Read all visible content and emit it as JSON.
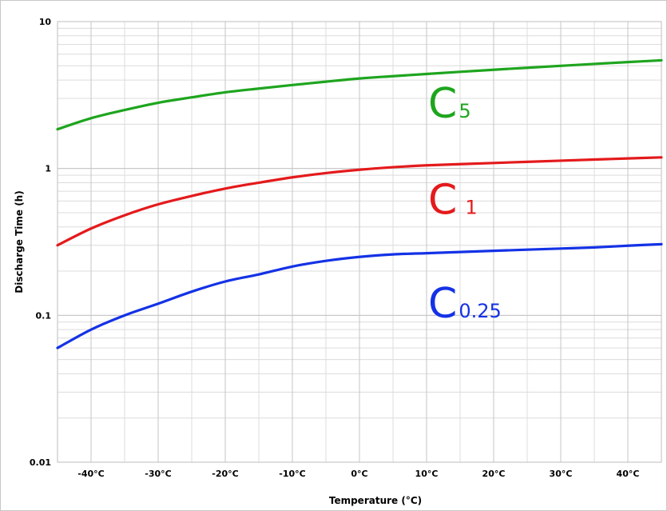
{
  "chart_data": {
    "type": "line",
    "title": "",
    "xlabel": "Temperature (°C)",
    "ylabel": "Discharge Time (h)",
    "x_ticks": [
      "-40°C",
      "-30°C",
      "-20°C",
      "-10°C",
      "0°C",
      "10°C",
      "20°C",
      "30°C",
      "40°C"
    ],
    "y_ticks": [
      "10",
      "1",
      "0.1",
      "0.01"
    ],
    "xlim": [
      -45,
      45
    ],
    "ylim": [
      0.01,
      10
    ],
    "y_scale": "log",
    "grid": true,
    "series": [
      {
        "name": "C5",
        "label_main": "C",
        "label_sub": "5",
        "color": "#1ea51e",
        "x": [
          -45,
          -40,
          -35,
          -30,
          -25,
          -20,
          -15,
          -10,
          -5,
          0,
          5,
          10,
          15,
          20,
          25,
          30,
          35,
          40,
          45
        ],
        "y": [
          1.85,
          2.2,
          2.5,
          2.8,
          3.05,
          3.3,
          3.5,
          3.7,
          3.9,
          4.1,
          4.25,
          4.4,
          4.55,
          4.7,
          4.85,
          5.0,
          5.15,
          5.3,
          5.45
        ]
      },
      {
        "name": "C1",
        "label_main": "C",
        "label_sub": "1",
        "color": "#e41a1c",
        "x": [
          -45,
          -40,
          -35,
          -30,
          -25,
          -20,
          -15,
          -10,
          -5,
          0,
          5,
          10,
          15,
          20,
          25,
          30,
          35,
          40,
          45
        ],
        "y": [
          0.3,
          0.39,
          0.48,
          0.57,
          0.65,
          0.73,
          0.8,
          0.87,
          0.93,
          0.98,
          1.02,
          1.05,
          1.07,
          1.09,
          1.11,
          1.13,
          1.15,
          1.17,
          1.19
        ]
      },
      {
        "name": "C0.25",
        "label_main": "C",
        "label_sub": "0.25",
        "color": "#1432e6",
        "x": [
          -45,
          -40,
          -35,
          -30,
          -25,
          -20,
          -15,
          -10,
          -5,
          0,
          5,
          10,
          15,
          20,
          25,
          30,
          35,
          40,
          45
        ],
        "y": [
          0.06,
          0.08,
          0.1,
          0.12,
          0.145,
          0.17,
          0.19,
          0.215,
          0.235,
          0.25,
          0.26,
          0.265,
          0.27,
          0.275,
          0.28,
          0.285,
          0.29,
          0.298,
          0.305
        ]
      }
    ]
  }
}
